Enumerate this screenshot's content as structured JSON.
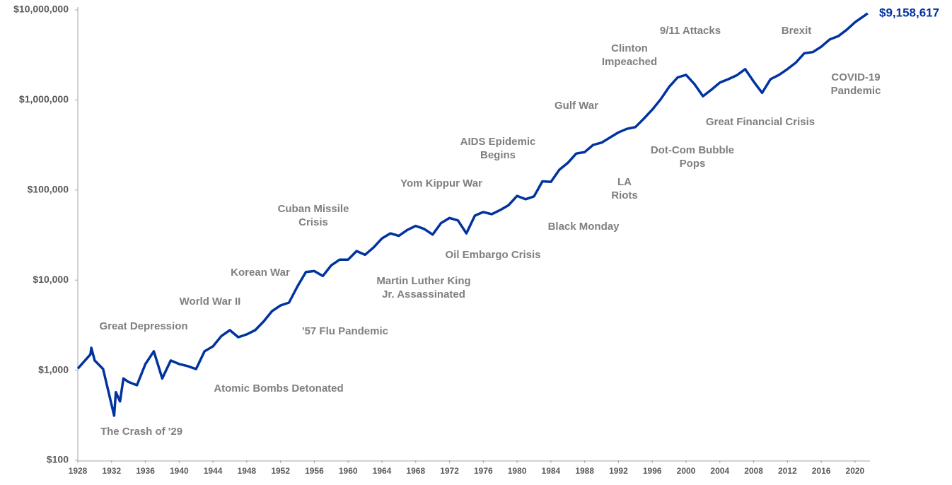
{
  "chart_data": {
    "type": "line",
    "log_scale_y": true,
    "grid": false,
    "color": "#0033a0",
    "x": [
      1928,
      1929.5,
      1929.6,
      1930,
      1931,
      1932.3,
      1932.5,
      1933,
      1933.4,
      1934,
      1935,
      1936,
      1937,
      1938,
      1939,
      1940,
      1941,
      1942,
      1943,
      1944,
      1945,
      1946,
      1947,
      1948,
      1949,
      1950,
      1951,
      1952,
      1953,
      1954,
      1955,
      1956,
      1957,
      1958,
      1959,
      1960,
      1961,
      1962,
      1963,
      1964,
      1965,
      1966,
      1967,
      1968,
      1969,
      1970,
      1971,
      1972,
      1973,
      1974,
      1975,
      1976,
      1977,
      1978,
      1979,
      1980,
      1981,
      1982,
      1983,
      1984,
      1985,
      1986,
      1987,
      1988,
      1989,
      1990,
      1991,
      1992,
      1993,
      1994,
      1995,
      1996,
      1997,
      1998,
      1999,
      2000,
      2001,
      2002,
      2003,
      2004,
      2005,
      2006,
      2007,
      2008,
      2009,
      2010,
      2011,
      2012,
      2013,
      2014,
      2015,
      2016,
      2017,
      2018,
      2019,
      2020,
      2021.5
    ],
    "values": [
      1040,
      1500,
      1770,
      1280,
      1030,
      312,
      570,
      450,
      810,
      740,
      680,
      1170,
      1620,
      810,
      1280,
      1170,
      1110,
      1030,
      1620,
      1840,
      2400,
      2780,
      2320,
      2500,
      2780,
      3480,
      4530,
      5240,
      5630,
      8530,
      12300,
      12600,
      11100,
      14600,
      16900,
      16900,
      21000,
      19100,
      23000,
      29000,
      33000,
      31000,
      36000,
      40000,
      37000,
      32000,
      43000,
      49000,
      46000,
      33000,
      52000,
      57000,
      54000,
      60000,
      68000,
      86000,
      79000,
      85000,
      125000,
      123000,
      168000,
      200000,
      254000,
      264000,
      317000,
      336000,
      383000,
      436000,
      478000,
      500000,
      620000,
      780000,
      1020000,
      1400000,
      1780000,
      1900000,
      1500000,
      1100000,
      1300000,
      1560000,
      1700000,
      1880000,
      2200000,
      1600000,
      1200000,
      1700000,
      1900000,
      2200000,
      2600000,
      3300000,
      3400000,
      3900000,
      4700000,
      5100000,
      6000000,
      7300000,
      9158617
    ],
    "end_label": "$9,158,617",
    "xlim": [
      1928,
      2021.6
    ],
    "xticks": [
      1928,
      1932,
      1936,
      1940,
      1944,
      1948,
      1952,
      1956,
      1960,
      1964,
      1968,
      1972,
      1976,
      1980,
      1984,
      1988,
      1992,
      1996,
      2000,
      2004,
      2008,
      2012,
      2016,
      2020
    ],
    "ylim": [
      100,
      10000000
    ],
    "yticks": [
      {
        "value": 100,
        "label": "$100"
      },
      {
        "value": 1000,
        "label": "$1,000"
      },
      {
        "value": 10000,
        "label": "$10,000"
      },
      {
        "value": 100000,
        "label": "$100,000"
      },
      {
        "value": 1000000,
        "label": "$1,000,000"
      },
      {
        "value": 10000000,
        "label": "$10,000,000"
      }
    ],
    "annotations": [
      [
        "Great Depression"
      ],
      [
        "The Crash of '29"
      ],
      [
        "World War II"
      ],
      [
        "Atomic Bombs Detonated"
      ],
      [
        "Korean War"
      ],
      [
        "'57 Flu Pandemic"
      ],
      [
        "Cuban Missile",
        "Crisis"
      ],
      [
        "Martin Luther King",
        "Jr. Assassinated"
      ],
      [
        "Yom Kippur War"
      ],
      [
        "Oil Embargo Crisis"
      ],
      [
        "AIDS Epidemic",
        "Begins"
      ],
      [
        "Black Monday"
      ],
      [
        "Gulf War"
      ],
      [
        "LA",
        "Riots"
      ],
      [
        "Clinton",
        "Impeached"
      ],
      [
        "Dot-Com Bubble",
        "Pops"
      ],
      [
        "9/11 Attacks"
      ],
      [
        "Great Financial Crisis"
      ],
      [
        "Brexit"
      ],
      [
        "COVID-19",
        "Pandemic"
      ]
    ]
  }
}
